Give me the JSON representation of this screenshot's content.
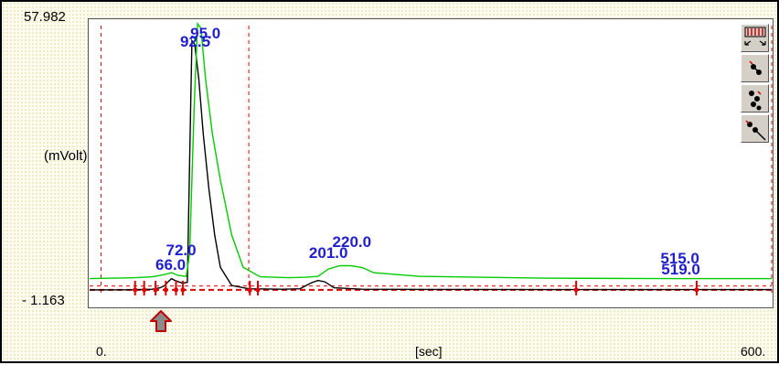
{
  "axes": {
    "y_top_label": "57.982",
    "y_bottom_label": "- 1.163",
    "y_unit_label": "(mVolt)",
    "x_start_label": "0.",
    "x_end_label": "600.",
    "x_unit_label": "[sec]"
  },
  "colors": {
    "trace_black": "#000000",
    "trace_green": "#00cc00",
    "markers": "#e00000",
    "peak_labels": "#1f1fd0",
    "background_dots": "#e8e6b8"
  },
  "toolbar": {
    "icons": [
      "zoom-fit-icon",
      "single-node-icon",
      "double-node-icon",
      "probe-tool-icon"
    ]
  },
  "chart_data": {
    "type": "line",
    "xlabel": "[sec]",
    "ylabel": "(mVolt)",
    "xlim": [
      0,
      600
    ],
    "ylim": [
      -1.163,
      57.982
    ],
    "series": [
      {
        "x": [
          0,
          40,
          55,
          62,
          66,
          69,
          72,
          76,
          82,
          86,
          90,
          92.5,
          96,
          100,
          105,
          110,
          115,
          125,
          140,
          170,
          185,
          195,
          201,
          207,
          215,
          240,
          300,
          400,
          500,
          515,
          519,
          600
        ],
        "y": [
          0.05,
          0.1,
          0.2,
          0.5,
          1.0,
          1.8,
          2.5,
          2.0,
          1.5,
          1.7,
          54.3,
          53.5,
          46.0,
          34.0,
          22.0,
          12.0,
          5.0,
          1.0,
          0.3,
          0.2,
          0.3,
          1.6,
          2.1,
          1.8,
          0.5,
          0.2,
          0.15,
          0.12,
          0.12,
          0.12,
          0.12,
          0.12
        ]
      },
      {
        "x": [
          0,
          20,
          40,
          55,
          60,
          66,
          72,
          78,
          85,
          88,
          92,
          95,
          98,
          102,
          108,
          115,
          125,
          135,
          150,
          175,
          190,
          201,
          210,
          220,
          230,
          240,
          250,
          290,
          400,
          515,
          519,
          600
        ],
        "y": [
          2.5,
          2.6,
          2.7,
          2.9,
          3.1,
          3.4,
          3.8,
          3.2,
          3.0,
          8.0,
          40.0,
          58.0,
          57.0,
          46.0,
          34.0,
          24.0,
          12.0,
          5.0,
          2.9,
          2.7,
          2.8,
          3.0,
          4.6,
          5.3,
          5.3,
          4.9,
          3.8,
          3.0,
          2.6,
          2.5,
          2.5,
          2.5
        ]
      }
    ],
    "peaks": [
      {
        "label": "66.0",
        "x": 66
      },
      {
        "label": "72.0",
        "x": 72
      },
      {
        "label": "92.5",
        "x": 92.5
      },
      {
        "label": "95.0",
        "x": 95
      },
      {
        "label": "201.0",
        "x": 201
      },
      {
        "label": "220.0",
        "x": 220
      },
      {
        "label": "515.0",
        "x": 515
      },
      {
        "label": "519.0",
        "x": 519
      }
    ],
    "baseline_markers_x": [
      40,
      48,
      58,
      67,
      76,
      82,
      141,
      148,
      428,
      534
    ],
    "peak_window_lines_x": [
      10,
      140,
      600
    ]
  }
}
